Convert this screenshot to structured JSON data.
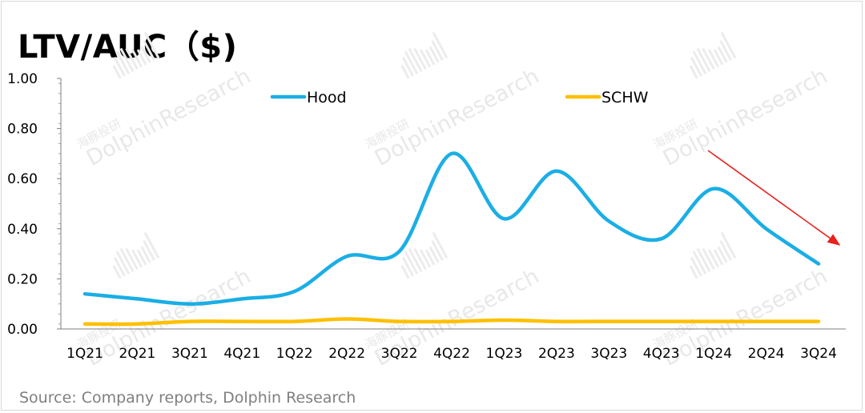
{
  "chart_data": {
    "type": "line",
    "title": "LTV/AUC（$)",
    "categories": [
      "1Q21",
      "2Q21",
      "3Q21",
      "4Q21",
      "1Q22",
      "2Q22",
      "3Q22",
      "4Q22",
      "1Q23",
      "2Q23",
      "3Q23",
      "4Q23",
      "1Q24",
      "2Q24",
      "3Q24"
    ],
    "series": [
      {
        "name": "Hood",
        "color": "#1aaee5",
        "values": [
          0.14,
          0.12,
          0.1,
          0.12,
          0.15,
          0.29,
          0.31,
          0.7,
          0.44,
          0.63,
          0.43,
          0.36,
          0.56,
          0.4,
          0.26
        ]
      },
      {
        "name": "SCHW",
        "color": "#ffc000",
        "values": [
          0.02,
          0.02,
          0.03,
          0.03,
          0.03,
          0.04,
          0.03,
          0.03,
          0.035,
          0.03,
          0.03,
          0.03,
          0.03,
          0.03,
          0.03
        ]
      }
    ],
    "ylim": [
      0,
      1.0
    ],
    "yticks": [
      "0.00",
      "0.20",
      "0.40",
      "0.60",
      "0.80",
      "1.00"
    ],
    "grid": false,
    "legend_position": "top",
    "annotation": {
      "type": "arrow",
      "color": "#e8211d",
      "direction": "down-right"
    }
  },
  "source": "Source: Company reports, Dolphin Research",
  "watermark": {
    "chinese": "海豚投研",
    "english": "DolphinResearch"
  }
}
